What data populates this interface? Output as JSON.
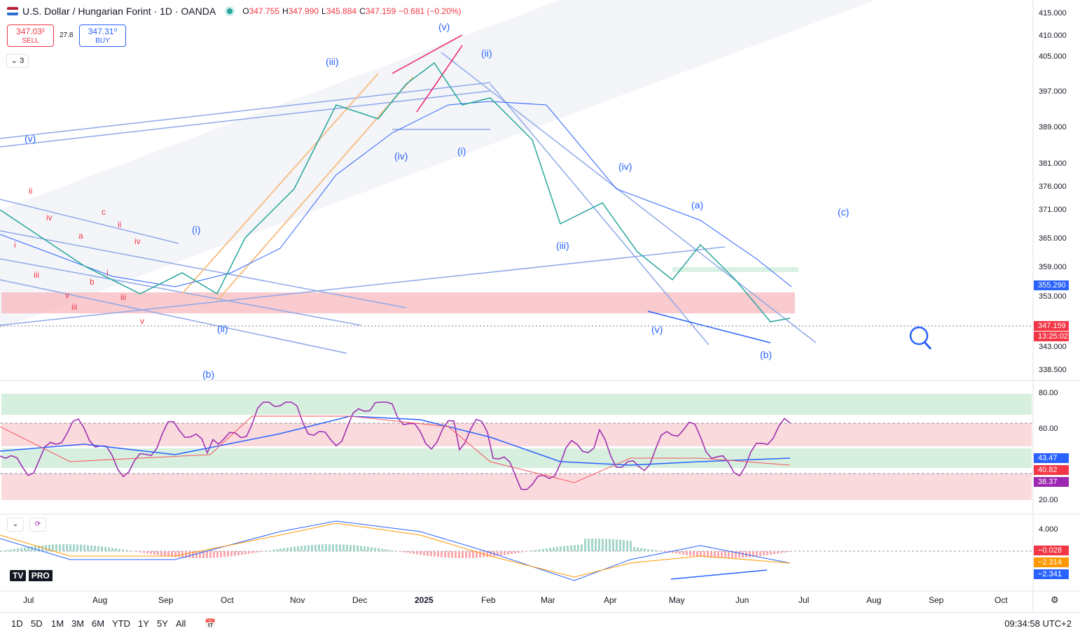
{
  "header": {
    "title": "U.S. Dollar / Hungarian Forint · 1D · OANDA",
    "ohlc": [
      {
        "label": "O",
        "value": "347.755"
      },
      {
        "label": "H",
        "value": "347.990"
      },
      {
        "label": "L",
        "value": "345.884"
      },
      {
        "label": "C",
        "value": "347.159"
      }
    ],
    "change": "−0.681 (−0.20%)"
  },
  "trade": {
    "sell_price": "347.03²",
    "sell_label": "SELL",
    "spread": "27.8",
    "buy_price": "347.31⁰",
    "buy_label": "BUY"
  },
  "collapse_label": "⌄ 3",
  "price_axis": [
    "415.000",
    "410.000",
    "405.000",
    "397.000",
    "389.000",
    "381.000",
    "376.000",
    "371.000",
    "365.000",
    "359.000",
    "353.000",
    "343.000",
    "338.500"
  ],
  "price_badges": {
    "blue": "355.290",
    "last": "347.159",
    "countdown": "13:25:02"
  },
  "rsi_axis": [
    "80.00",
    "60.00",
    "20.00"
  ],
  "rsi_badges": {
    "blue": "43.47",
    "red": "40.82",
    "purple": "38.37"
  },
  "macd_axis": [
    "4.000"
  ],
  "macd_badges": {
    "hist": "−0.028",
    "signal": "−2.314",
    "macd": "−2.341"
  },
  "time_axis": [
    "Jul",
    "Aug",
    "Sep",
    "Oct",
    "Nov",
    "Dec",
    "2025",
    "Feb",
    "Mar",
    "Apr",
    "May",
    "Jun",
    "Jul",
    "Aug",
    "Sep",
    "Oct"
  ],
  "wave_labels_blue": [
    "(v)",
    "(iii)",
    "(ii)",
    "(iv)",
    "(i)",
    "(iv)",
    "(a)",
    "(c)",
    "(i)",
    "(iii)",
    "(v)",
    "(ii)",
    "(b)",
    "(b)",
    "(v)"
  ],
  "wave_labels_red": [
    "ii",
    "iv",
    "i",
    "iii",
    "v",
    "iii",
    "c",
    "ii",
    "a",
    "b",
    "i",
    "iii",
    "iv",
    "v"
  ],
  "timeframes": [
    "1D",
    "5D",
    "1M",
    "3M",
    "6M",
    "YTD",
    "1Y",
    "5Y",
    "All"
  ],
  "clock": "09:34:58 UTC+2",
  "logo_text": "PRO",
  "colors": {
    "up": "#26a69a",
    "down": "#f23645",
    "wave": "#2962ff",
    "rsi": "#9c27b0"
  }
}
